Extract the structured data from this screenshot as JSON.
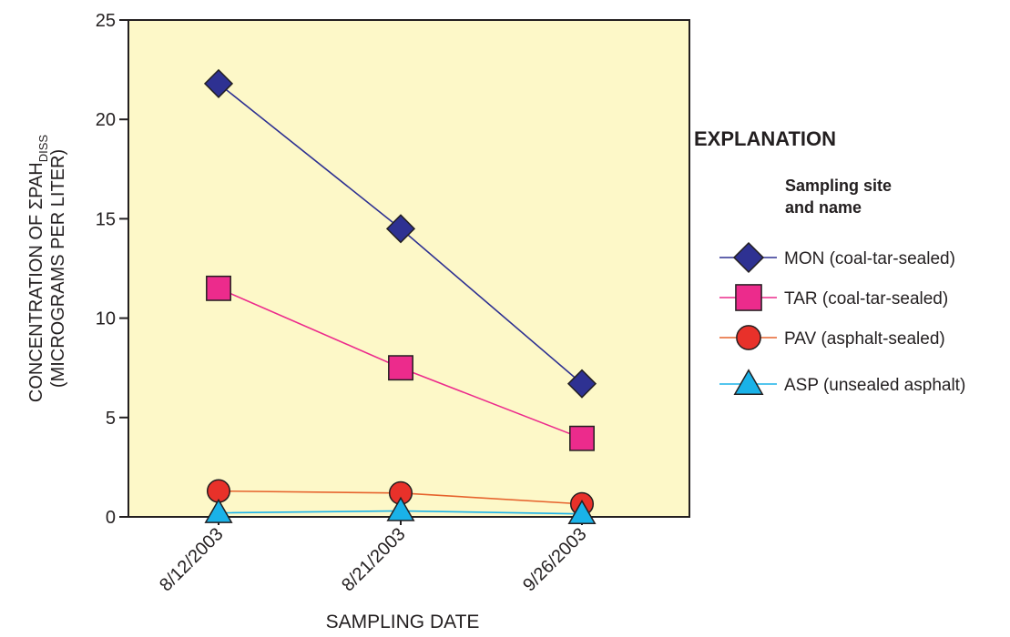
{
  "chart_data": {
    "type": "line",
    "categories": [
      "8/12/2003",
      "8/21/2003",
      "9/26/2003"
    ],
    "series": [
      {
        "name": "MON (coal-tar-sealed)",
        "values": [
          21.8,
          14.5,
          6.7
        ],
        "color": "#2e3192",
        "marker": "diamond"
      },
      {
        "name": "TAR (coal-tar-sealed)",
        "values": [
          11.5,
          7.5,
          3.95
        ],
        "color": "#ec2b8c",
        "marker": "square"
      },
      {
        "name": "PAV (asphalt-sealed)",
        "values": [
          1.3,
          1.2,
          0.65
        ],
        "color": "#e8312a",
        "line_color": "#e6632d",
        "marker": "circle"
      },
      {
        "name": "ASP (unsealed asphalt)",
        "values": [
          0.2,
          0.3,
          0.15
        ],
        "color": "#1ab2e8",
        "marker": "triangle"
      }
    ],
    "xlabel": "SAMPLING DATE",
    "ylabel_line1_prefix": "CONCENTRATION OF ΣPAH",
    "ylabel_line1_subscript": "DISS",
    "ylabel_line2": "(MICROGRAMS PER LITER)",
    "ylim": [
      0,
      25
    ],
    "yticks": [
      "0",
      "5",
      "10",
      "15",
      "20",
      "25"
    ],
    "plot_background": "#fdf8c8",
    "grid": false
  },
  "legend": {
    "title": "EXPLANATION",
    "subtitle_line1": "Sampling site",
    "subtitle_line2": "and name",
    "placement": "right"
  }
}
